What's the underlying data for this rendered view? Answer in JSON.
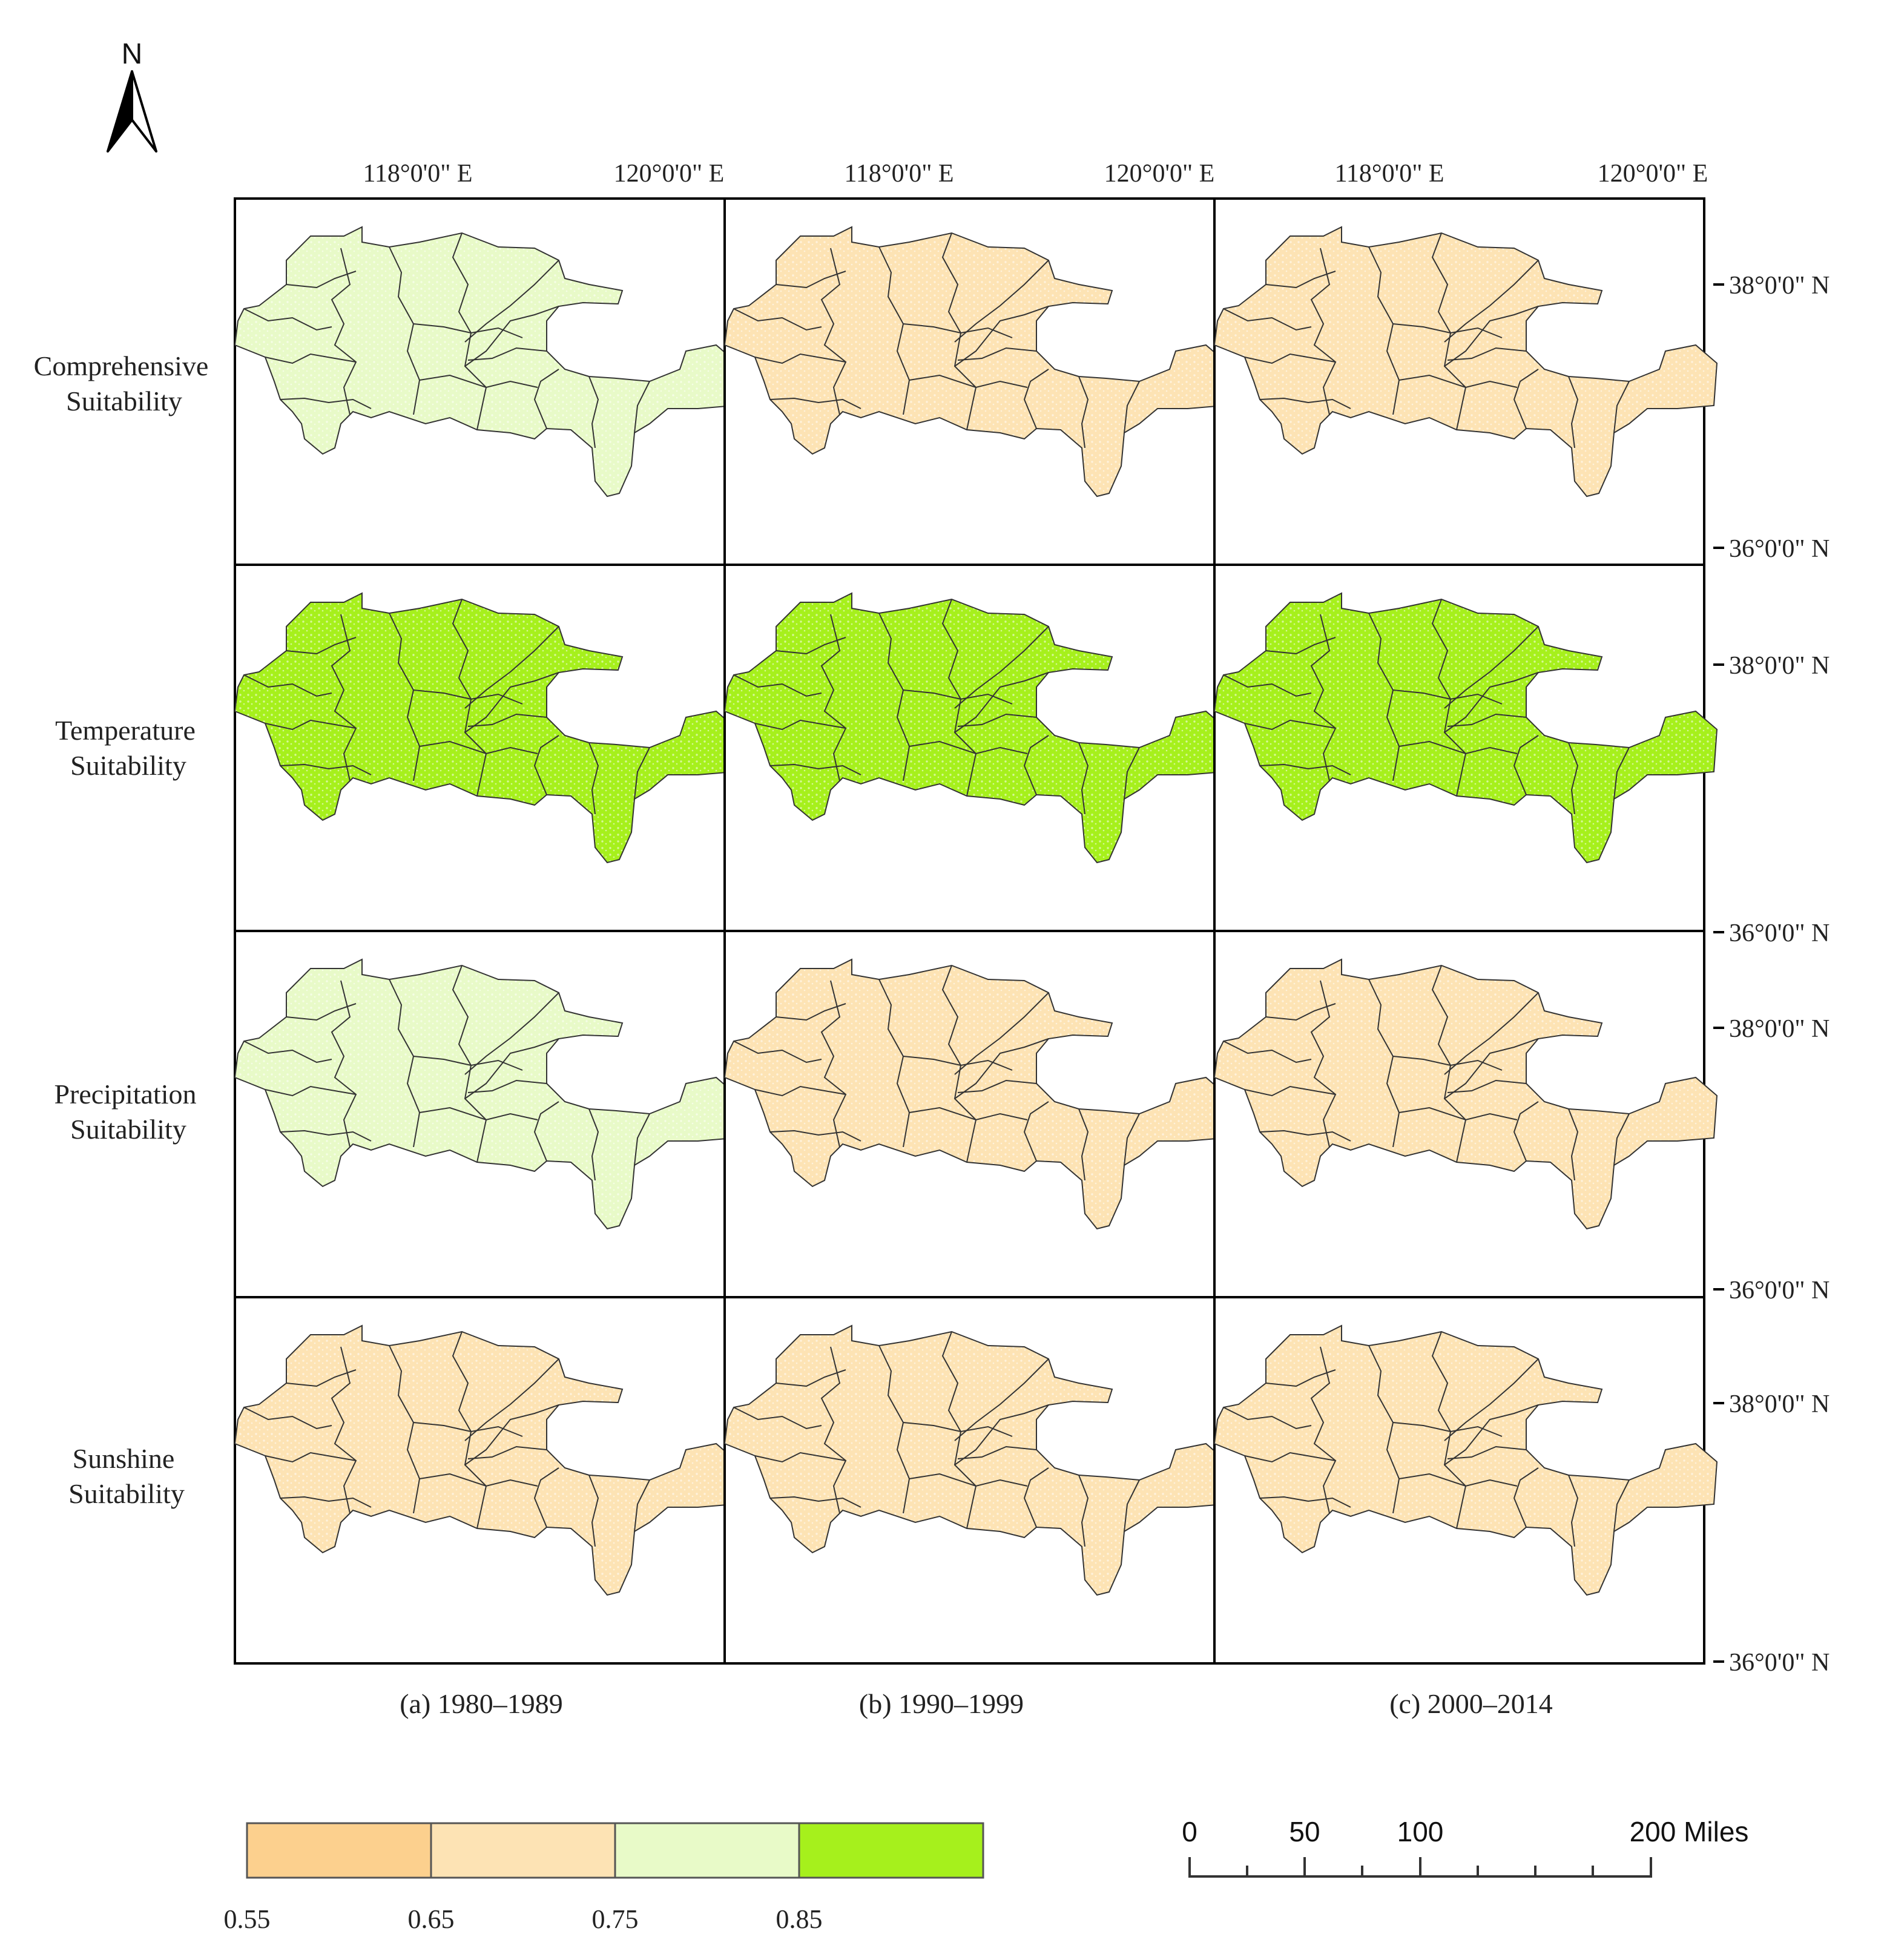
{
  "figure": {
    "north_arrow_label": "N",
    "lon_labels": [
      "118°0'0\" E",
      "120°0'0\" E"
    ],
    "lat_labels": [
      "38°0'0\" N",
      "36°0'0\" N"
    ],
    "row_labels": [
      {
        "line1": "Comprehensive",
        "line2": "Suitability"
      },
      {
        "line1": "Temperature",
        "line2": "Suitability"
      },
      {
        "line1": "Precipitation",
        "line2": "Suitability"
      },
      {
        "line1": "Sunshine",
        "line2": "Suitability"
      }
    ],
    "column_labels": [
      "(a) 1980–1989",
      "(b) 1990–1999",
      "(c) 2000–2014"
    ],
    "legend": {
      "classes": [
        {
          "color": "#fcd08e"
        },
        {
          "color": "#fde3b4"
        },
        {
          "color": "#e8fac8"
        },
        {
          "color": "#a6f01c"
        }
      ],
      "break_labels": [
        "0.55",
        "0.65",
        "0.75",
        "0.85"
      ]
    },
    "scale_bar": {
      "labels": [
        "0",
        "50",
        "100",
        "200 Miles"
      ],
      "values": [
        0,
        50,
        100,
        200
      ]
    },
    "map_values": [
      [
        "0.75-0.85",
        "0.65-0.75",
        "0.65-0.75"
      ],
      [
        ">0.85",
        ">0.85",
        ">0.85"
      ],
      [
        "0.75-0.85",
        "0.65-0.75",
        "0.65-0.75"
      ],
      [
        "0.65-0.75",
        "0.65-0.75",
        "0.65-0.75"
      ]
    ],
    "map_fills": [
      [
        "#e8fac8",
        "#fde3b4",
        "#fde3b4"
      ],
      [
        "#a6f01c",
        "#a6f01c",
        "#a6f01c"
      ],
      [
        "#e8fac8",
        "#fde3b4",
        "#fde3b4"
      ],
      [
        "#fde3b4",
        "#fde3b4",
        "#fde3b4"
      ]
    ]
  }
}
